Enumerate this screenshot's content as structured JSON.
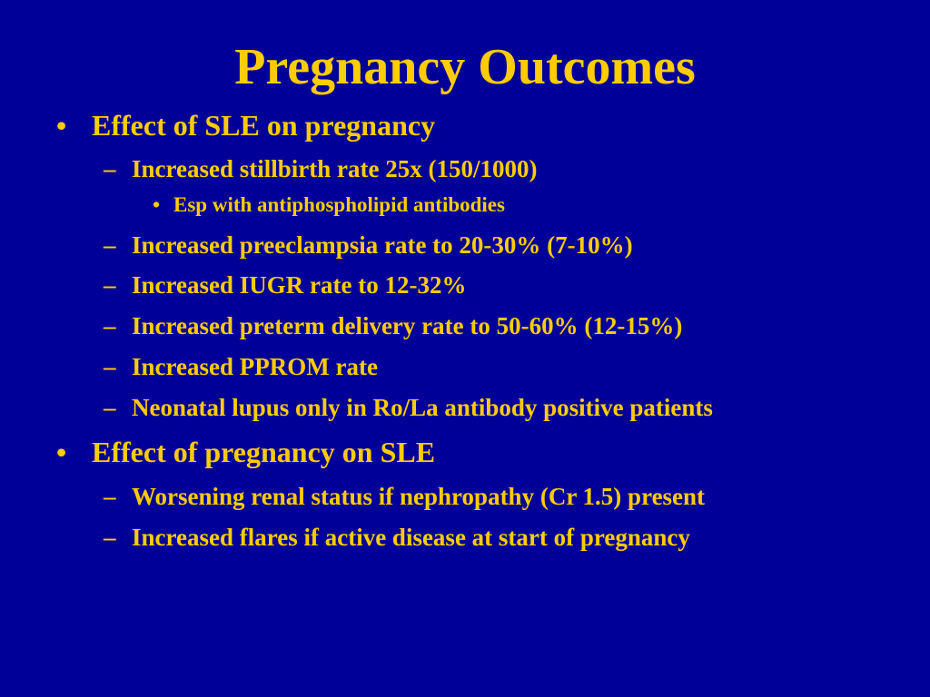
{
  "slide": {
    "title": "Pregnancy Outcomes",
    "bullets": {
      "level1": "•",
      "level2": "–",
      "level3": "•"
    },
    "items": [
      "Effect of SLE on pregnancy",
      "Increased stillbirth rate 25x  (150/1000)",
      "Esp with antiphospholipid antibodies",
      "Increased preeclampsia rate to 20-30% (7-10%)",
      "Increased IUGR rate to 12-32%",
      "Increased preterm delivery rate to 50-60% (12-15%)",
      "Increased PPROM rate",
      "Neonatal lupus only in Ro/La antibody positive patients",
      "Effect of pregnancy on SLE",
      "Worsening renal status if nephropathy (Cr 1.5) present",
      "Increased flares if active disease at start of pregnancy"
    ]
  },
  "colors": {
    "background": "#000099",
    "text": "#FFCC00"
  }
}
